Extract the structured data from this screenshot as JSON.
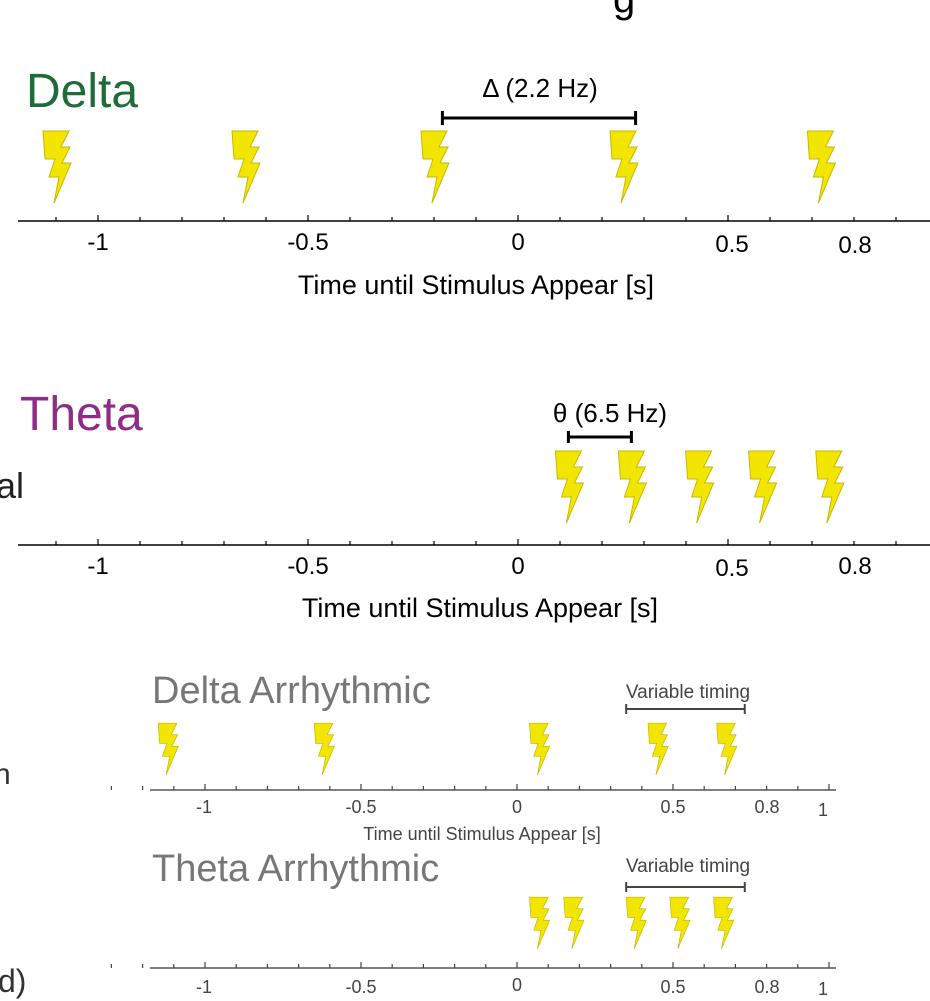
{
  "colors": {
    "delta": "#1f6b3a",
    "theta": "#8e2c87",
    "bolt": "#f2e600",
    "axis": "#000000",
    "faded_text": "#777777",
    "faded_axis": "#444444"
  },
  "cropped_fragments": {
    "top_partial": "g",
    "al": "al",
    "n": "n",
    "d": "d)"
  },
  "axis_label": "Time until Stimulus Appear [s]",
  "delta": {
    "title": "Delta",
    "interval_label": "Δ (2.2 Hz)",
    "ticks": [
      "-1",
      "-0.5",
      "0",
      "0.5",
      "0.8"
    ],
    "bolt_times": [
      -1.1,
      -0.65,
      -0.2,
      0.25,
      0.72
    ],
    "interval": [
      -0.18,
      0.28
    ]
  },
  "theta": {
    "title": "Theta",
    "interval_label": "θ (6.5 Hz)",
    "ticks": [
      "-1",
      "-0.5",
      "0",
      "0.5",
      "0.8"
    ],
    "bolt_times": [
      0.12,
      0.27,
      0.43,
      0.58,
      0.74
    ],
    "interval": [
      0.12,
      0.27
    ]
  },
  "delta_arrhythmic": {
    "title": "Delta Arrhythmic",
    "interval_label": "Variable timing",
    "ticks": [
      "-1",
      "-0.5",
      "0",
      "0.5",
      "0.8",
      "1"
    ],
    "bolt_times": [
      -1.12,
      -0.62,
      0.07,
      0.45,
      0.67
    ],
    "interval": [
      0.35,
      0.73
    ]
  },
  "theta_arrhythmic": {
    "title": "Theta Arrhythmic",
    "interval_label": "Variable timing",
    "ticks": [
      "-1",
      "-0.5",
      "0",
      "0.5",
      "0.8",
      "1"
    ],
    "bolt_times": [
      0.07,
      0.18,
      0.38,
      0.52,
      0.66
    ],
    "interval": [
      0.35,
      0.73
    ]
  }
}
